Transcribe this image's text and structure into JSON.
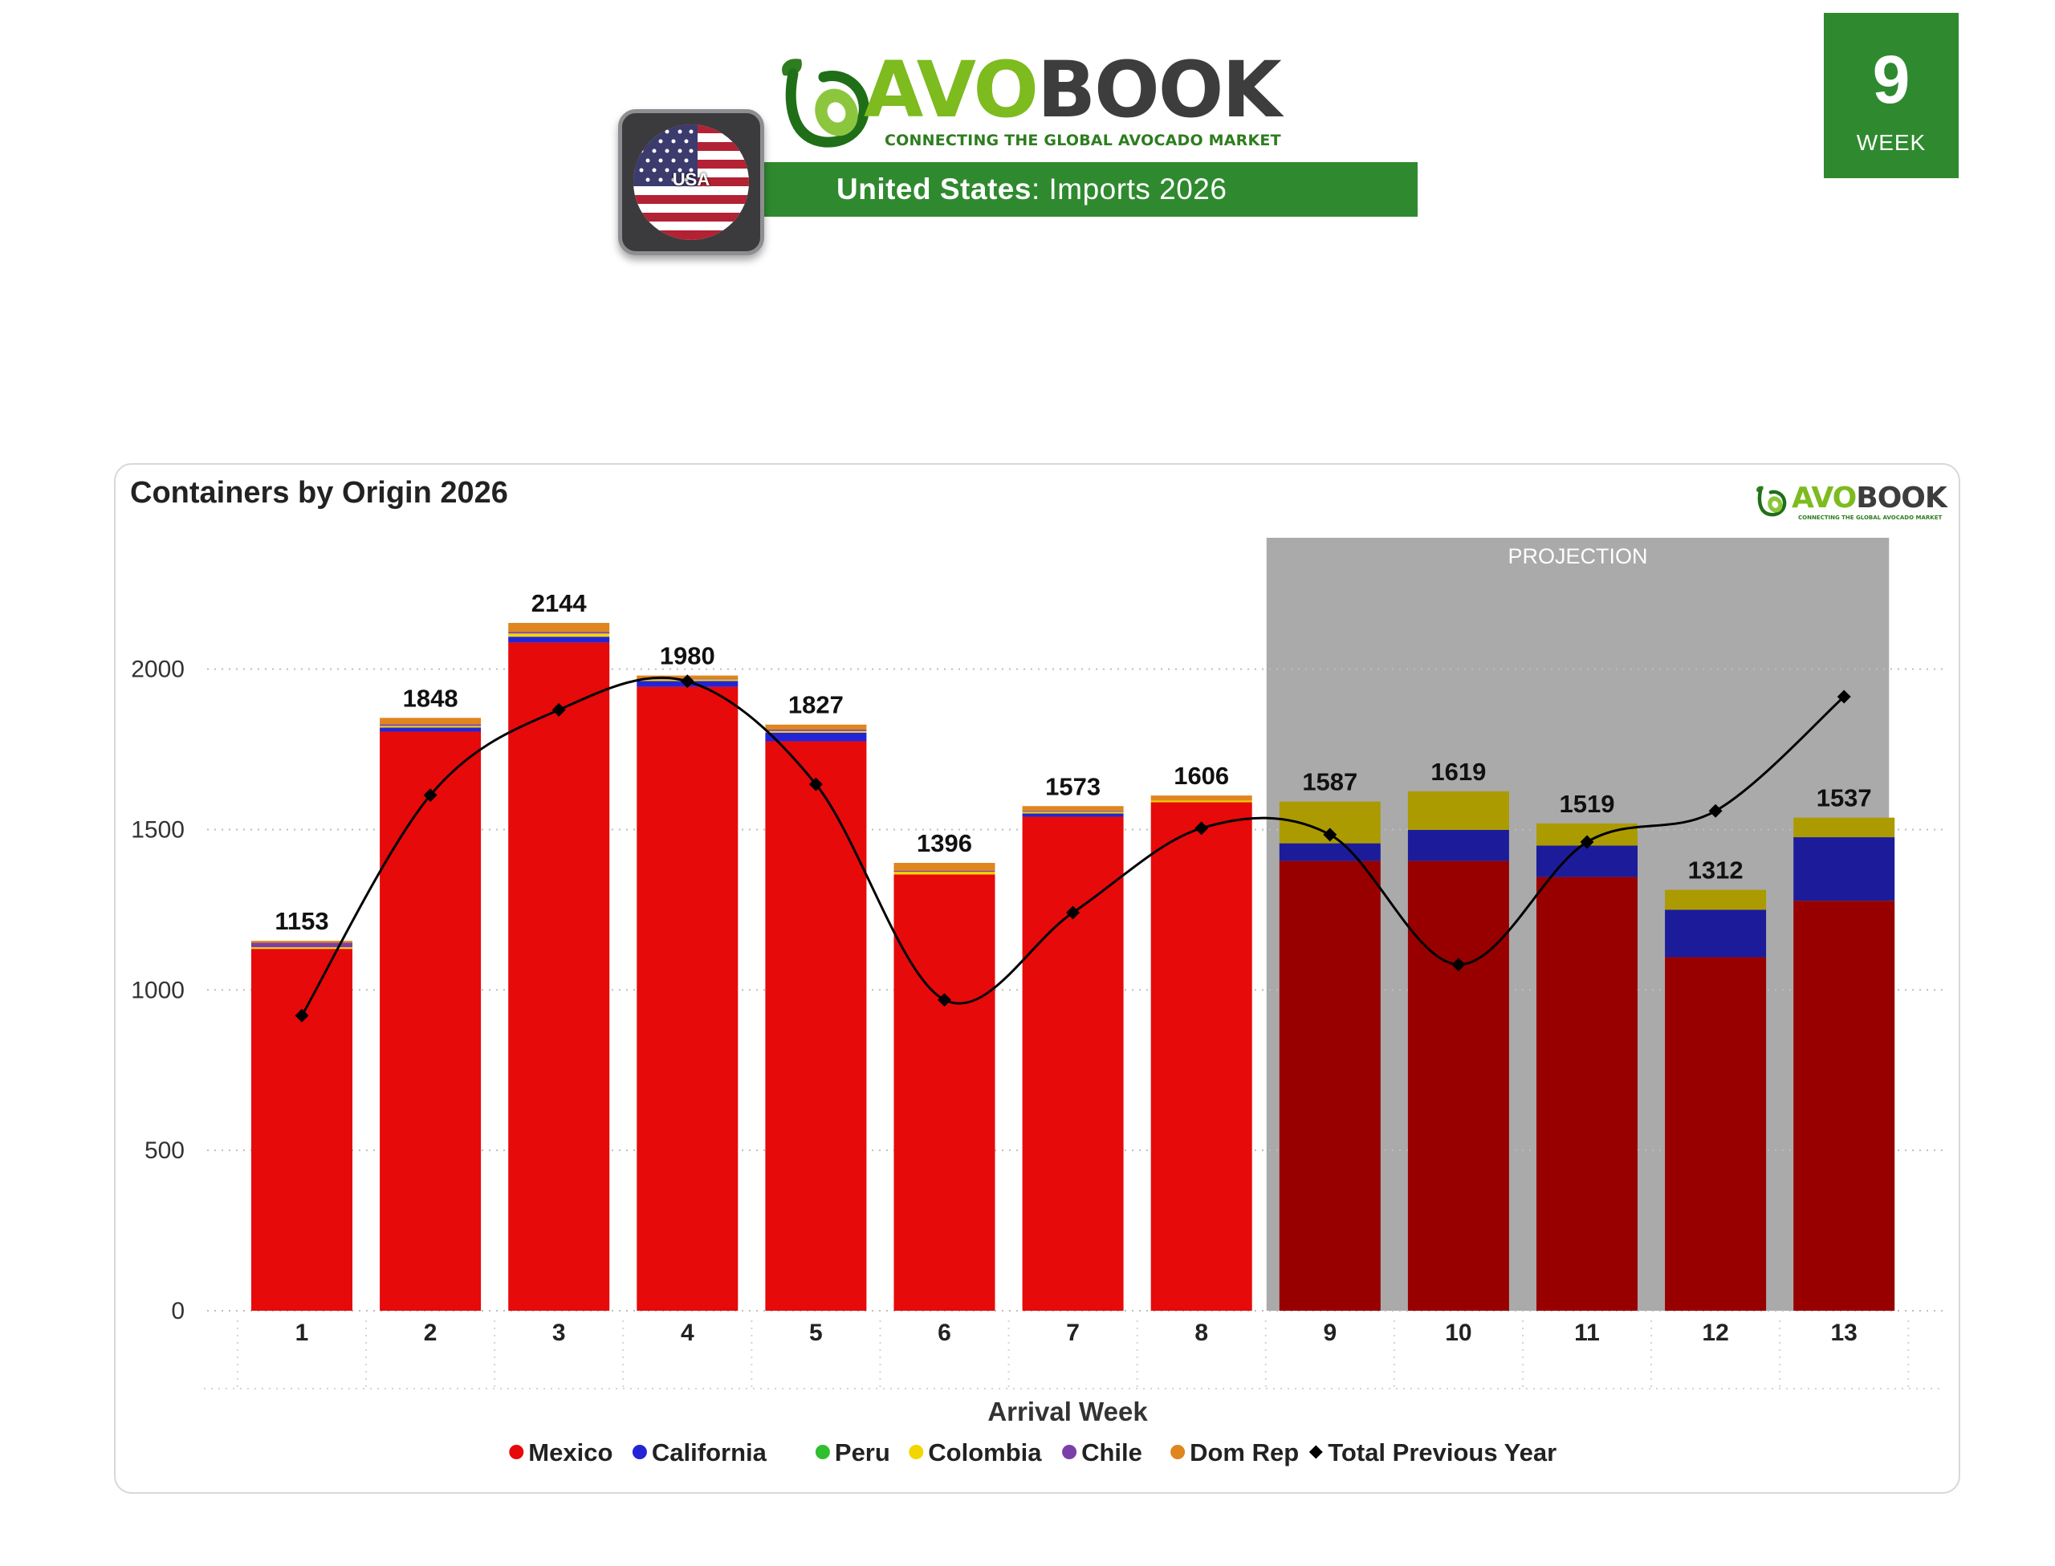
{
  "header": {
    "brand_avo": "AVO",
    "brand_book": "BOOK",
    "tagline": "CONNECTING THE GLOBAL AVOCADO MARKET",
    "country": "United States",
    "subtitle_rest": ": Imports 2026",
    "flag_label": "USA",
    "week_number": "9",
    "week_label": "WEEK"
  },
  "card": {
    "title": "Containers by Origin 2026",
    "logo_avo": "AVO",
    "logo_book": "BOOK",
    "logo_tagline": "CONNECTING THE GLOBAL AVOCADO MARKET"
  },
  "colors": {
    "brand_green": "#2f8a2f",
    "mexico": "#e60a0a",
    "mexico_projection": "#980000",
    "california": "#2424d6",
    "california_projection": "#1c1c9a",
    "peru": "#2fbf2f",
    "colombia": "#f2d600",
    "colombia_projection": "#ab9b00",
    "chile": "#7a3fa8",
    "dom_rep": "#df861f",
    "previous_year": "#000000",
    "projection_band": "#aaaaaa"
  },
  "chart_data": {
    "type": "bar",
    "stacked": true,
    "title": "Containers by Origin 2026",
    "xlabel": "Arrival Week",
    "ylabel": "",
    "ylim": [
      0,
      2300
    ],
    "yticks": [
      0,
      500,
      1000,
      1500,
      2000
    ],
    "grid": true,
    "legend_position": "bottom",
    "projection_label": "PROJECTION",
    "projection_start_week": 9,
    "categories": [
      "1",
      "2",
      "3",
      "4",
      "5",
      "6",
      "7",
      "8",
      "9",
      "10",
      "11",
      "12",
      "13"
    ],
    "totals": [
      1153,
      1848,
      2144,
      1980,
      1827,
      1396,
      1573,
      1606,
      1587,
      1619,
      1519,
      1312,
      1537
    ],
    "series": [
      {
        "name": "Mexico",
        "color_key": "mexico",
        "values": [
          1128,
          1805,
          2083,
          1945,
          1775,
          1360,
          1540,
          1585,
          1402,
          1402,
          1352,
          1102,
          1278
        ]
      },
      {
        "name": "California",
        "color_key": "california",
        "values": [
          0,
          13,
          18,
          18,
          27,
          0,
          10,
          0,
          55,
          97,
          98,
          148,
          198
        ]
      },
      {
        "name": "Peru",
        "color_key": "peru",
        "values": [
          0,
          0,
          0,
          0,
          0,
          0,
          0,
          0,
          0,
          0,
          0,
          0,
          0
        ]
      },
      {
        "name": "Colombia",
        "color_key": "colombia",
        "values": [
          5,
          5,
          10,
          5,
          5,
          8,
          5,
          5,
          130,
          120,
          69,
          62,
          61
        ]
      },
      {
        "name": "Chile",
        "color_key": "chile",
        "values": [
          14,
          5,
          5,
          2,
          5,
          3,
          3,
          0,
          0,
          0,
          0,
          0,
          0
        ]
      },
      {
        "name": "Dom Rep",
        "color_key": "dom_rep",
        "values": [
          6,
          20,
          28,
          10,
          15,
          25,
          15,
          16,
          0,
          0,
          0,
          0,
          0
        ]
      }
    ],
    "line_series": {
      "name": "Total Previous Year",
      "color_key": "previous_year",
      "values": [
        920,
        1607,
        1873,
        1962,
        1641,
        969,
        1241,
        1504,
        1484,
        1079,
        1461,
        1558,
        1914
      ]
    }
  }
}
